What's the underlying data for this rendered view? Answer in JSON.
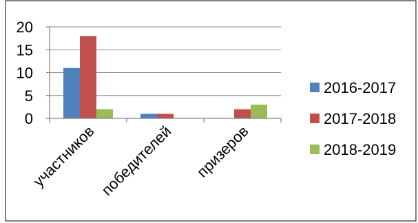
{
  "chart_data": {
    "type": "bar",
    "categories": [
      "участников",
      "победителей",
      "призеров"
    ],
    "series": [
      {
        "name": "2016-2017",
        "values": [
          11,
          1,
          0
        ],
        "color": "#4f81bd"
      },
      {
        "name": "2017-2018",
        "values": [
          18,
          1,
          2
        ],
        "color": "#c0504d"
      },
      {
        "name": "2018-2019",
        "values": [
          2,
          0,
          3
        ],
        "color": "#9bbb59"
      }
    ],
    "yticks": [
      "0",
      "5",
      "10",
      "15",
      "20"
    ],
    "ylim": [
      0,
      20
    ],
    "grid": true,
    "legend": "right"
  }
}
